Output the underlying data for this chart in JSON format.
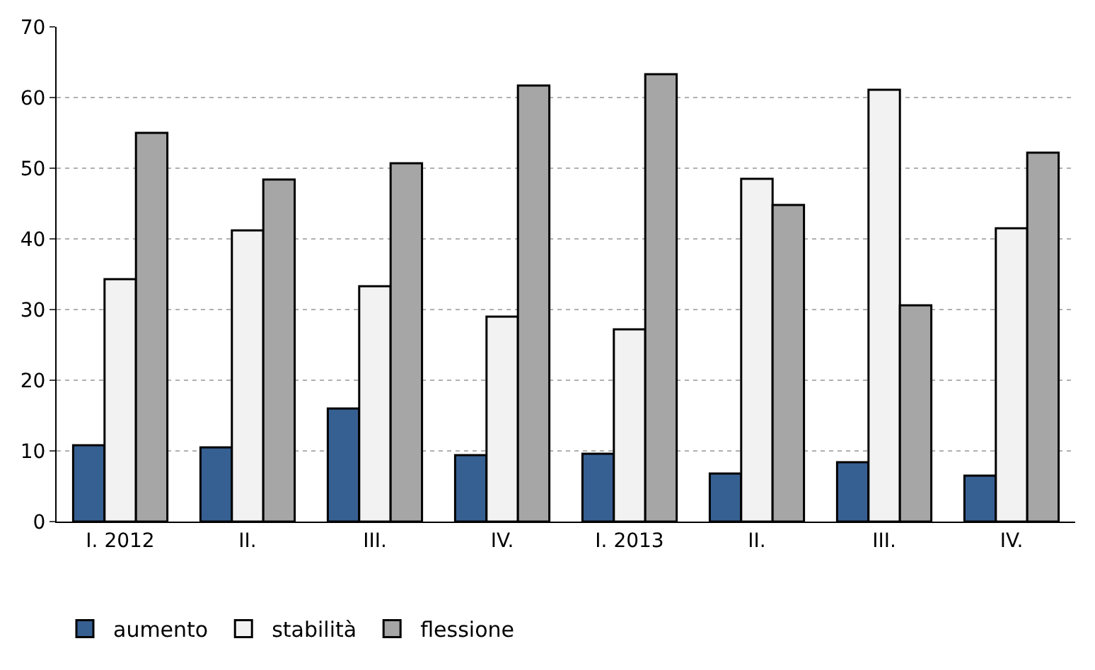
{
  "chart_data": {
    "type": "bar",
    "categories": [
      "I. 2012",
      "II.",
      "III.",
      "IV.",
      "I. 2013",
      "II.",
      "III.",
      "IV."
    ],
    "series": [
      {
        "name": "aumento",
        "color": "#376092",
        "values": [
          10.8,
          10.5,
          16.0,
          9.4,
          9.6,
          6.8,
          8.4,
          6.5
        ]
      },
      {
        "name": "stabilità",
        "color": "#f2f2f2",
        "values": [
          34.3,
          41.2,
          33.3,
          29.0,
          27.2,
          48.5,
          61.1,
          41.5
        ]
      },
      {
        "name": "flessione",
        "color": "#a6a6a6",
        "values": [
          55.0,
          48.4,
          50.7,
          61.7,
          63.3,
          44.8,
          30.6,
          52.2
        ]
      }
    ],
    "ylim": [
      0,
      70
    ],
    "yticks": [
      0,
      10,
      20,
      30,
      40,
      50,
      60,
      70
    ],
    "grid": "y",
    "legend": "bottom left"
  }
}
